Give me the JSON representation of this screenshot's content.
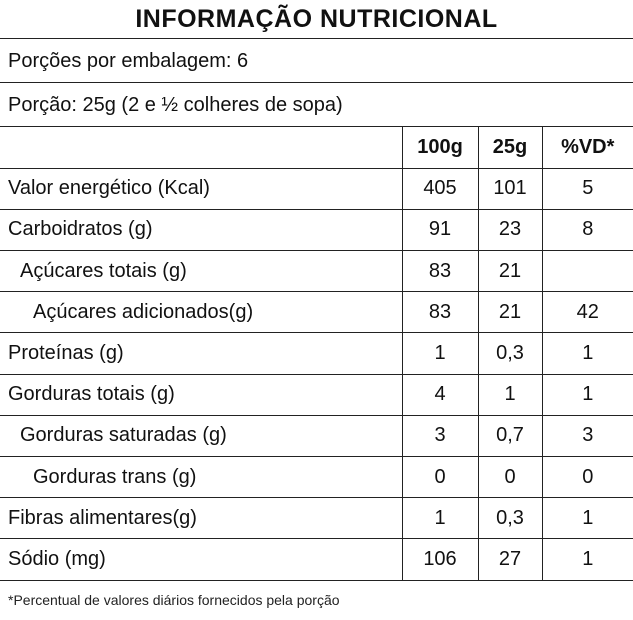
{
  "title": "INFORMAÇÃO NUTRICIONAL",
  "servings_per_package": "Porções por embalagem: 6",
  "serving_size": "Porção: 25g (2 e ½ colheres de sopa)",
  "columns": [
    "100g",
    "25g",
    "%VD*"
  ],
  "rows": [
    {
      "label": "Valor energético (Kcal)",
      "v100": "405",
      "v25": "101",
      "vd": "5"
    },
    {
      "label": "Carboidratos (g)",
      "v100": "91",
      "v25": "23",
      "vd": "8"
    },
    {
      "label": "Açúcares totais (g)",
      "v100": "83",
      "v25": "21",
      "vd": ""
    },
    {
      "label": "Açúcares adicionados(g)",
      "v100": "83",
      "v25": "21",
      "vd": "42"
    },
    {
      "label": "Proteínas (g)",
      "v100": "1",
      "v25": "0,3",
      "vd": "1"
    },
    {
      "label": "Gorduras totais (g)",
      "v100": "4",
      "v25": "1",
      "vd": "1"
    },
    {
      "label": "Gorduras saturadas (g)",
      "v100": "3",
      "v25": "0,7",
      "vd": "3"
    },
    {
      "label": "Gorduras trans (g)",
      "v100": "0",
      "v25": "0",
      "vd": "0"
    },
    {
      "label": "Fibras alimentares(g)",
      "v100": "1",
      "v25": "0,3",
      "vd": "1"
    },
    {
      "label": "Sódio (mg)",
      "v100": "106",
      "v25": "27",
      "vd": "1"
    }
  ],
  "footnote": "*Percentual de valores diários fornecidos pela porção"
}
